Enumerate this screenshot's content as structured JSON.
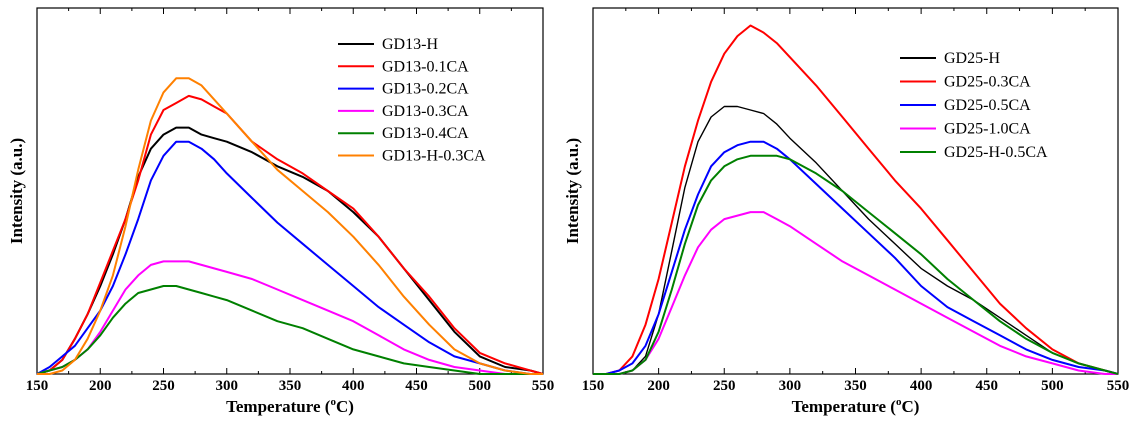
{
  "chart_data": [
    {
      "type": "line",
      "xlabel": "Temperature (oC)",
      "xlabel_main": "Temperature (",
      "xlabel_sup": "o",
      "xlabel_unit": "C)",
      "ylabel": "Intensity (a.u.)",
      "xlim": [
        150,
        550
      ],
      "ylim": [
        0,
        100
      ],
      "xticks": [
        "150",
        "200",
        "250",
        "300",
        "350",
        "400",
        "450",
        "500",
        "550"
      ],
      "legend_position": "top-right",
      "grid": false,
      "series": [
        {
          "name": "GD13-H",
          "color": "#000000",
          "x": [
            150,
            160,
            170,
            180,
            190,
            200,
            210,
            220,
            230,
            240,
            250,
            260,
            270,
            280,
            290,
            300,
            320,
            340,
            360,
            380,
            400,
            420,
            440,
            460,
            480,
            500,
            520,
            540,
            550
          ],
          "y": [
            0,
            1,
            4,
            10,
            17,
            25,
            34,
            44,
            56,
            64,
            68,
            70,
            70,
            68,
            67,
            66,
            63,
            59,
            56,
            52,
            46,
            39,
            30,
            21,
            12,
            5,
            2,
            1,
            0
          ]
        },
        {
          "name": "GD13-0.1CA",
          "color": "#ff0000",
          "x": [
            150,
            160,
            170,
            180,
            190,
            200,
            210,
            220,
            230,
            240,
            250,
            260,
            270,
            280,
            290,
            300,
            320,
            340,
            360,
            380,
            400,
            420,
            440,
            460,
            480,
            500,
            520,
            540,
            550
          ],
          "y": [
            0,
            1,
            4,
            10,
            17,
            26,
            35,
            44,
            55,
            68,
            75,
            77,
            79,
            78,
            76,
            74,
            66,
            61,
            57,
            52,
            47,
            39,
            30,
            22,
            13,
            6,
            3,
            1,
            0
          ]
        },
        {
          "name": "GD13-0.2CA",
          "color": "#0000ff",
          "x": [
            150,
            160,
            170,
            180,
            190,
            200,
            210,
            220,
            230,
            240,
            250,
            260,
            270,
            280,
            290,
            300,
            320,
            340,
            360,
            380,
            400,
            420,
            440,
            460,
            480,
            500,
            520,
            540,
            550
          ],
          "y": [
            0,
            2,
            5,
            8,
            13,
            18,
            25,
            34,
            44,
            55,
            62,
            66,
            66,
            64,
            61,
            57,
            50,
            43,
            37,
            31,
            25,
            19,
            14,
            9,
            5,
            3,
            1,
            0,
            0
          ]
        },
        {
          "name": "GD13-0.3CA",
          "color": "#ff00ff",
          "x": [
            150,
            160,
            170,
            180,
            190,
            200,
            210,
            220,
            230,
            240,
            250,
            260,
            270,
            280,
            290,
            300,
            320,
            340,
            360,
            380,
            400,
            420,
            440,
            460,
            480,
            500,
            520,
            540,
            550
          ],
          "y": [
            0,
            1,
            2,
            4,
            7,
            12,
            18,
            24,
            28,
            31,
            32,
            32,
            32,
            31,
            30,
            29,
            27,
            24,
            21,
            18,
            15,
            11,
            7,
            4,
            2,
            1,
            0,
            0,
            0
          ]
        },
        {
          "name": "GD13-0.4CA",
          "color": "#008000",
          "x": [
            150,
            160,
            170,
            180,
            190,
            200,
            210,
            220,
            230,
            240,
            250,
            260,
            270,
            280,
            290,
            300,
            320,
            340,
            360,
            380,
            400,
            420,
            440,
            460,
            480,
            500,
            520,
            540,
            550
          ],
          "y": [
            0,
            1,
            2,
            4,
            7,
            11,
            16,
            20,
            23,
            24,
            25,
            25,
            24,
            23,
            22,
            21,
            18,
            15,
            13,
            10,
            7,
            5,
            3,
            2,
            1,
            0,
            0,
            0,
            0
          ]
        },
        {
          "name": "GD13-H-0.3CA",
          "color": "#ff8000",
          "x": [
            150,
            160,
            170,
            180,
            190,
            200,
            210,
            220,
            230,
            240,
            250,
            260,
            270,
            280,
            290,
            300,
            320,
            340,
            360,
            380,
            400,
            420,
            440,
            460,
            480,
            500,
            520,
            540,
            550
          ],
          "y": [
            0,
            0,
            1,
            4,
            10,
            18,
            28,
            42,
            58,
            72,
            80,
            84,
            84,
            82,
            78,
            74,
            66,
            58,
            52,
            46,
            39,
            31,
            22,
            14,
            7,
            3,
            1,
            0,
            0
          ]
        }
      ]
    },
    {
      "type": "line",
      "xlabel": "Temperature (oC)",
      "xlabel_main": "Temperature (",
      "xlabel_sup": "o",
      "xlabel_unit": "C)",
      "ylabel": "Intensity (a.u.)",
      "xlim": [
        150,
        550
      ],
      "ylim": [
        0,
        100
      ],
      "xticks": [
        "150",
        "200",
        "250",
        "300",
        "350",
        "400",
        "450",
        "500",
        "550"
      ],
      "legend_position": "top-right",
      "grid": false,
      "series": [
        {
          "name": "GD25-H",
          "color": "#000000",
          "x": [
            150,
            160,
            170,
            180,
            190,
            200,
            210,
            220,
            230,
            240,
            250,
            260,
            270,
            280,
            290,
            300,
            320,
            340,
            360,
            380,
            400,
            420,
            440,
            460,
            480,
            500,
            520,
            540,
            550
          ],
          "y": [
            0,
            0,
            0,
            1,
            5,
            17,
            35,
            53,
            66,
            73,
            76,
            76,
            75,
            74,
            71,
            67,
            60,
            52,
            44,
            37,
            30,
            25,
            21,
            16,
            11,
            6,
            3,
            1,
            0
          ]
        },
        {
          "name": "GD25-0.3CA",
          "color": "#ff0000",
          "x": [
            150,
            160,
            170,
            180,
            190,
            200,
            210,
            220,
            230,
            240,
            250,
            260,
            270,
            280,
            290,
            300,
            320,
            340,
            360,
            380,
            400,
            420,
            440,
            460,
            480,
            500,
            520,
            540,
            550
          ],
          "y": [
            0,
            0,
            1,
            5,
            14,
            27,
            43,
            59,
            72,
            83,
            91,
            96,
            99,
            97,
            94,
            90,
            82,
            73,
            64,
            55,
            47,
            38,
            29,
            20,
            13,
            7,
            3,
            1,
            0
          ]
        },
        {
          "name": "GD25-0.5CA",
          "color": "#0000ff",
          "x": [
            150,
            160,
            170,
            180,
            190,
            200,
            210,
            220,
            230,
            240,
            250,
            260,
            270,
            280,
            290,
            300,
            320,
            340,
            360,
            380,
            400,
            420,
            440,
            460,
            480,
            500,
            520,
            540,
            550
          ],
          "y": [
            0,
            0,
            1,
            3,
            8,
            17,
            29,
            41,
            51,
            59,
            63,
            65,
            66,
            66,
            64,
            61,
            54,
            47,
            40,
            33,
            25,
            19,
            15,
            11,
            7,
            4,
            2,
            1,
            0
          ]
        },
        {
          "name": "GD25-1.0CA",
          "color": "#ff00ff",
          "x": [
            150,
            160,
            170,
            180,
            190,
            200,
            210,
            220,
            230,
            240,
            250,
            260,
            270,
            280,
            290,
            300,
            320,
            340,
            360,
            380,
            400,
            420,
            440,
            460,
            480,
            500,
            520,
            540,
            550
          ],
          "y": [
            0,
            0,
            0,
            1,
            4,
            10,
            19,
            28,
            36,
            41,
            44,
            45,
            46,
            46,
            44,
            42,
            37,
            32,
            28,
            24,
            20,
            16,
            12,
            8,
            5,
            3,
            1,
            0,
            0
          ]
        },
        {
          "name": "GD25-H-0.5CA",
          "color": "#008000",
          "x": [
            150,
            160,
            170,
            180,
            190,
            200,
            210,
            220,
            230,
            240,
            250,
            260,
            270,
            280,
            290,
            300,
            320,
            340,
            360,
            380,
            400,
            420,
            440,
            460,
            480,
            500,
            520,
            540,
            550
          ],
          "y": [
            0,
            0,
            0,
            1,
            4,
            12,
            24,
            37,
            48,
            55,
            59,
            61,
            62,
            62,
            62,
            61,
            57,
            52,
            46,
            40,
            34,
            27,
            21,
            15,
            10,
            6,
            3,
            1,
            0
          ]
        }
      ]
    }
  ]
}
